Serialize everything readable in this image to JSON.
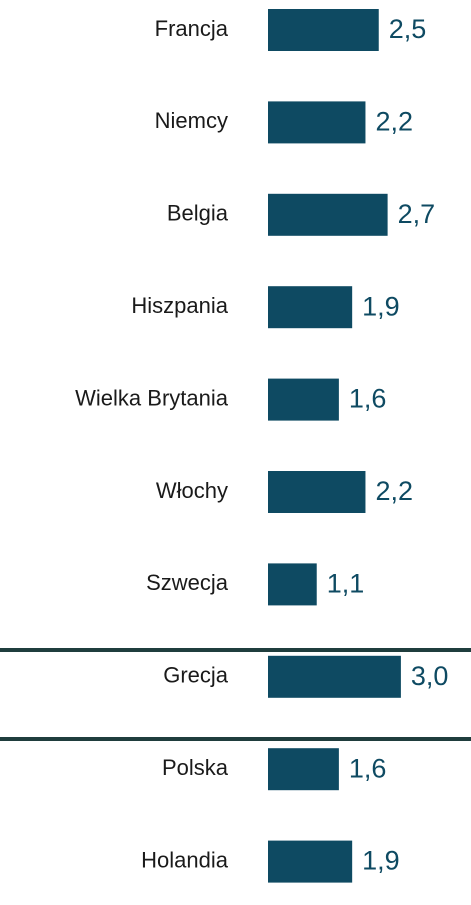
{
  "chart_data": {
    "type": "bar",
    "orientation": "horizontal",
    "categories": [
      "Francja",
      "Niemcy",
      "Belgia",
      "Hiszpania",
      "Wielka Brytania",
      "Włochy",
      "Szwecja",
      "Grecja",
      "Polska",
      "Holandia"
    ],
    "values": [
      2.5,
      2.2,
      2.7,
      1.9,
      1.6,
      2.2,
      1.1,
      3.0,
      1.6,
      1.9
    ],
    "value_labels": [
      "2,5",
      "2,2",
      "2,7",
      "1,9",
      "1,6",
      "2,2",
      "1,1",
      "3,0",
      "1,6",
      "1,9"
    ],
    "color": "#0e4a62"
  }
}
